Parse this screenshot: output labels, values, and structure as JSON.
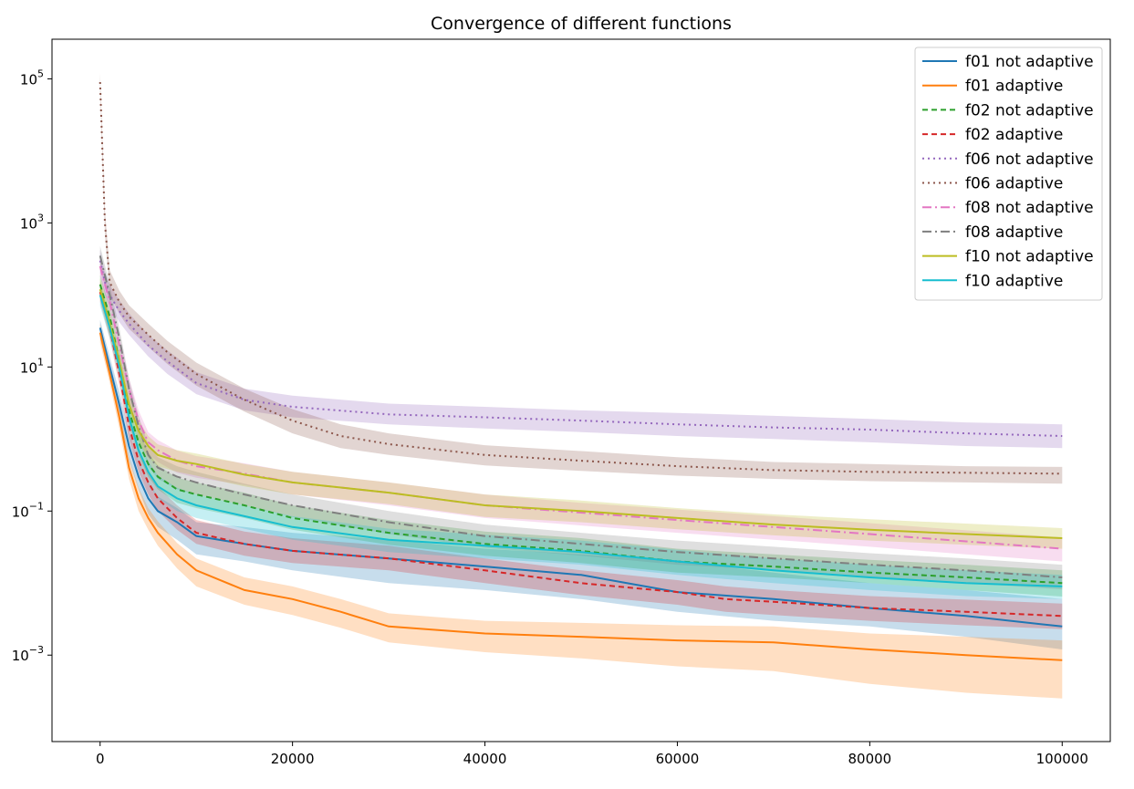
{
  "chart_data": {
    "type": "line",
    "title": "Convergence of different functions",
    "xlabel": "",
    "ylabel": "",
    "y_scale": "log",
    "xlim": [
      -5000,
      105000
    ],
    "ylim_log10": [
      -4.2,
      5.55
    ],
    "xticks": [
      0,
      20000,
      40000,
      60000,
      80000,
      100000
    ],
    "xtick_labels": [
      "0",
      "20000",
      "40000",
      "60000",
      "80000",
      "100000"
    ],
    "yticks": [
      0.001,
      0.1,
      10,
      1000,
      100000
    ],
    "ytick_labels": [
      {
        "base": "10",
        "exp": "−3"
      },
      {
        "base": "10",
        "exp": "−1"
      },
      {
        "base": "10",
        "exp": "1"
      },
      {
        "base": "10",
        "exp": "3"
      },
      {
        "base": "10",
        "exp": "5"
      }
    ],
    "grid": false,
    "legend_position": "top-right",
    "series": [
      {
        "name": "f01 not adaptive",
        "color": "#1f77b4",
        "dash": "solid",
        "x": [
          0,
          1000,
          2000,
          3000,
          4000,
          5000,
          6000,
          8000,
          10000,
          15000,
          20000,
          30000,
          40000,
          50000,
          60000,
          70000,
          80000,
          90000,
          100000
        ],
        "y": [
          35,
          10,
          3,
          0.8,
          0.3,
          0.15,
          0.1,
          0.07,
          0.045,
          0.035,
          0.028,
          0.022,
          0.017,
          0.013,
          0.0075,
          0.006,
          0.0045,
          0.0035,
          0.0025
        ],
        "band_lo": [
          25,
          7,
          2,
          0.5,
          0.2,
          0.09,
          0.06,
          0.04,
          0.025,
          0.02,
          0.015,
          0.01,
          0.008,
          0.006,
          0.004,
          0.003,
          0.0025,
          0.0018,
          0.0012
        ],
        "band_hi": [
          45,
          14,
          4.5,
          1.3,
          0.5,
          0.25,
          0.16,
          0.11,
          0.07,
          0.06,
          0.05,
          0.04,
          0.03,
          0.025,
          0.02,
          0.014,
          0.01,
          0.008,
          0.006
        ]
      },
      {
        "name": "f01 adaptive",
        "color": "#ff7f0e",
        "dash": "solid",
        "x": [
          0,
          1000,
          2000,
          3000,
          4000,
          5000,
          6000,
          8000,
          10000,
          15000,
          20000,
          25000,
          30000,
          40000,
          50000,
          60000,
          70000,
          80000,
          90000,
          100000
        ],
        "y": [
          30,
          8,
          2,
          0.4,
          0.15,
          0.08,
          0.05,
          0.025,
          0.015,
          0.008,
          0.006,
          0.004,
          0.0025,
          0.002,
          0.0018,
          0.0016,
          0.0015,
          0.0012,
          0.001,
          0.00085
        ],
        "band_lo": [
          22,
          6,
          1.4,
          0.28,
          0.1,
          0.055,
          0.033,
          0.016,
          0.009,
          0.005,
          0.0036,
          0.0024,
          0.0015,
          0.0011,
          0.0009,
          0.0007,
          0.0006,
          0.0004,
          0.0003,
          0.00025
        ],
        "band_hi": [
          40,
          11,
          2.8,
          0.56,
          0.21,
          0.11,
          0.072,
          0.036,
          0.022,
          0.012,
          0.009,
          0.006,
          0.0038,
          0.003,
          0.0028,
          0.0026,
          0.0025,
          0.002,
          0.0018,
          0.0016
        ]
      },
      {
        "name": "f02 not adaptive",
        "color": "#2ca02c",
        "dash": "6,4",
        "x": [
          0,
          1000,
          2000,
          3000,
          4000,
          5000,
          6000,
          8000,
          10000,
          15000,
          20000,
          30000,
          40000,
          50000,
          60000,
          70000,
          80000,
          90000,
          100000
        ],
        "y": [
          140,
          50,
          12,
          2.5,
          0.9,
          0.45,
          0.3,
          0.2,
          0.17,
          0.12,
          0.08,
          0.05,
          0.035,
          0.028,
          0.02,
          0.017,
          0.014,
          0.012,
          0.01
        ],
        "band_lo": [
          100,
          35,
          8,
          1.7,
          0.6,
          0.3,
          0.2,
          0.13,
          0.11,
          0.08,
          0.055,
          0.034,
          0.024,
          0.019,
          0.014,
          0.012,
          0.01,
          0.008,
          0.0065
        ],
        "band_hi": [
          190,
          70,
          17,
          3.5,
          1.3,
          0.65,
          0.43,
          0.29,
          0.25,
          0.18,
          0.12,
          0.075,
          0.052,
          0.042,
          0.03,
          0.025,
          0.021,
          0.018,
          0.015
        ]
      },
      {
        "name": "f02 adaptive",
        "color": "#d62728",
        "dash": "6,4",
        "x": [
          0,
          1000,
          2000,
          3000,
          4000,
          5000,
          6000,
          8000,
          10000,
          15000,
          20000,
          30000,
          40000,
          50000,
          60000,
          65000,
          70000,
          80000,
          90000,
          100000
        ],
        "y": [
          110,
          35,
          8,
          1.5,
          0.5,
          0.25,
          0.15,
          0.08,
          0.05,
          0.035,
          0.028,
          0.022,
          0.015,
          0.01,
          0.0075,
          0.006,
          0.0055,
          0.0045,
          0.004,
          0.0035
        ],
        "band_lo": [
          80,
          25,
          5.6,
          1,
          0.35,
          0.17,
          0.1,
          0.055,
          0.035,
          0.024,
          0.019,
          0.015,
          0.01,
          0.0068,
          0.005,
          0.004,
          0.0036,
          0.003,
          0.0026,
          0.0023
        ],
        "band_hi": [
          150,
          48,
          11,
          2.1,
          0.7,
          0.36,
          0.22,
          0.12,
          0.075,
          0.052,
          0.042,
          0.033,
          0.022,
          0.015,
          0.011,
          0.009,
          0.008,
          0.0066,
          0.0059,
          0.0052
        ]
      },
      {
        "name": "f06 not adaptive",
        "color": "#9467bd",
        "dash": "2,4",
        "x": [
          0,
          500,
          1000,
          2000,
          3000,
          5000,
          7000,
          10000,
          15000,
          20000,
          30000,
          40000,
          50000,
          60000,
          70000,
          80000,
          90000,
          100000
        ],
        "y": [
          300,
          150,
          100,
          60,
          40,
          20,
          12,
          6,
          3.5,
          2.8,
          2.2,
          2,
          1.8,
          1.6,
          1.45,
          1.35,
          1.2,
          1.1
        ],
        "band_lo": [
          200,
          100,
          70,
          42,
          28,
          14,
          8,
          4.2,
          2.5,
          2,
          1.6,
          1.4,
          1.25,
          1.1,
          1,
          0.9,
          0.8,
          0.75
        ],
        "band_hi": [
          420,
          210,
          140,
          84,
          56,
          28,
          17,
          8.5,
          5,
          4,
          3.1,
          2.8,
          2.5,
          2.3,
          2.1,
          1.9,
          1.7,
          1.6
        ]
      },
      {
        "name": "f06 adaptive",
        "color": "#8c564b",
        "dash": "2,4",
        "x": [
          0,
          500,
          1000,
          2000,
          3000,
          5000,
          7000,
          10000,
          15000,
          20000,
          25000,
          30000,
          40000,
          50000,
          60000,
          70000,
          80000,
          90000,
          100000
        ],
        "y": [
          90000,
          1000,
          150,
          80,
          50,
          28,
          16,
          8,
          3.5,
          1.8,
          1.1,
          0.85,
          0.6,
          0.5,
          0.42,
          0.37,
          0.35,
          0.34,
          0.33
        ],
        "band_lo": [
          70000,
          700,
          100,
          55,
          34,
          19,
          11,
          5.5,
          2.4,
          1.2,
          0.75,
          0.6,
          0.43,
          0.36,
          0.31,
          0.28,
          0.26,
          0.25,
          0.24
        ],
        "band_hi": [
          120000,
          1500,
          220,
          115,
          72,
          40,
          23,
          11.5,
          5,
          2.6,
          1.6,
          1.2,
          0.82,
          0.68,
          0.56,
          0.48,
          0.45,
          0.42,
          0.41
        ]
      },
      {
        "name": "f08 not adaptive",
        "color": "#e377c2",
        "dash": "10,4,2,4",
        "x": [
          0,
          1000,
          2000,
          3000,
          4000,
          5000,
          6000,
          8000,
          10000,
          15000,
          20000,
          30000,
          40000,
          50000,
          60000,
          70000,
          80000,
          90000,
          100000
        ],
        "y": [
          250,
          80,
          20,
          5,
          1.8,
          0.9,
          0.7,
          0.5,
          0.42,
          0.33,
          0.25,
          0.18,
          0.12,
          0.095,
          0.075,
          0.06,
          0.048,
          0.038,
          0.03
        ],
        "band_lo": [
          180,
          55,
          14,
          3.5,
          1.25,
          0.62,
          0.48,
          0.34,
          0.29,
          0.23,
          0.17,
          0.12,
          0.08,
          0.063,
          0.05,
          0.04,
          0.032,
          0.025,
          0.02
        ],
        "band_hi": [
          340,
          110,
          28,
          7,
          2.5,
          1.25,
          0.97,
          0.69,
          0.58,
          0.46,
          0.35,
          0.25,
          0.17,
          0.13,
          0.105,
          0.085,
          0.068,
          0.054,
          0.043
        ]
      },
      {
        "name": "f08 adaptive",
        "color": "#7f7f7f",
        "dash": "10,4,2,4",
        "x": [
          0,
          1000,
          2000,
          3000,
          4000,
          5000,
          6000,
          8000,
          10000,
          15000,
          20000,
          30000,
          40000,
          50000,
          60000,
          70000,
          80000,
          90000,
          100000
        ],
        "y": [
          350,
          100,
          25,
          5,
          1.5,
          0.6,
          0.4,
          0.3,
          0.25,
          0.17,
          0.12,
          0.07,
          0.045,
          0.035,
          0.027,
          0.022,
          0.018,
          0.015,
          0.012
        ],
        "band_lo": [
          250,
          70,
          17,
          3.5,
          1,
          0.42,
          0.28,
          0.2,
          0.17,
          0.12,
          0.083,
          0.048,
          0.031,
          0.024,
          0.018,
          0.015,
          0.012,
          0.01,
          0.0082
        ],
        "band_hi": [
          480,
          140,
          35,
          7,
          2.1,
          0.85,
          0.56,
          0.42,
          0.35,
          0.24,
          0.17,
          0.1,
          0.065,
          0.05,
          0.039,
          0.032,
          0.026,
          0.022,
          0.018
        ]
      },
      {
        "name": "f10 not adaptive",
        "color": "#bcbd22",
        "dash": "solid",
        "x": [
          0,
          1000,
          2000,
          3000,
          4000,
          5000,
          6000,
          8000,
          10000,
          15000,
          20000,
          30000,
          40000,
          50000,
          60000,
          70000,
          80000,
          90000,
          100000
        ],
        "y": [
          120,
          40,
          12,
          3,
          1.3,
          0.8,
          0.6,
          0.5,
          0.45,
          0.32,
          0.25,
          0.18,
          0.12,
          0.1,
          0.08,
          0.065,
          0.055,
          0.048,
          0.042
        ],
        "band_lo": [
          85,
          28,
          8.4,
          2.1,
          0.9,
          0.56,
          0.42,
          0.35,
          0.31,
          0.22,
          0.17,
          0.125,
          0.083,
          0.07,
          0.056,
          0.046,
          0.039,
          0.034,
          0.03
        ],
        "band_hi": [
          170,
          56,
          17,
          4.2,
          1.8,
          1.1,
          0.84,
          0.7,
          0.63,
          0.45,
          0.35,
          0.25,
          0.17,
          0.14,
          0.11,
          0.09,
          0.077,
          0.067,
          0.058
        ]
      },
      {
        "name": "f10 adaptive",
        "color": "#17becf",
        "dash": "solid",
        "x": [
          0,
          1000,
          2000,
          3000,
          4000,
          5000,
          6000,
          8000,
          10000,
          15000,
          20000,
          30000,
          40000,
          50000,
          60000,
          70000,
          80000,
          90000,
          100000
        ],
        "y": [
          100,
          35,
          10,
          2,
          0.7,
          0.35,
          0.22,
          0.15,
          0.12,
          0.085,
          0.06,
          0.04,
          0.033,
          0.027,
          0.02,
          0.015,
          0.012,
          0.01,
          0.009
        ],
        "band_lo": [
          70,
          25,
          7,
          1.4,
          0.49,
          0.24,
          0.15,
          0.1,
          0.08,
          0.057,
          0.04,
          0.027,
          0.022,
          0.018,
          0.013,
          0.01,
          0.008,
          0.0066,
          0.006
        ],
        "band_hi": [
          140,
          49,
          14,
          2.8,
          0.98,
          0.49,
          0.31,
          0.21,
          0.17,
          0.12,
          0.085,
          0.057,
          0.047,
          0.039,
          0.029,
          0.022,
          0.018,
          0.015,
          0.013
        ]
      }
    ]
  }
}
